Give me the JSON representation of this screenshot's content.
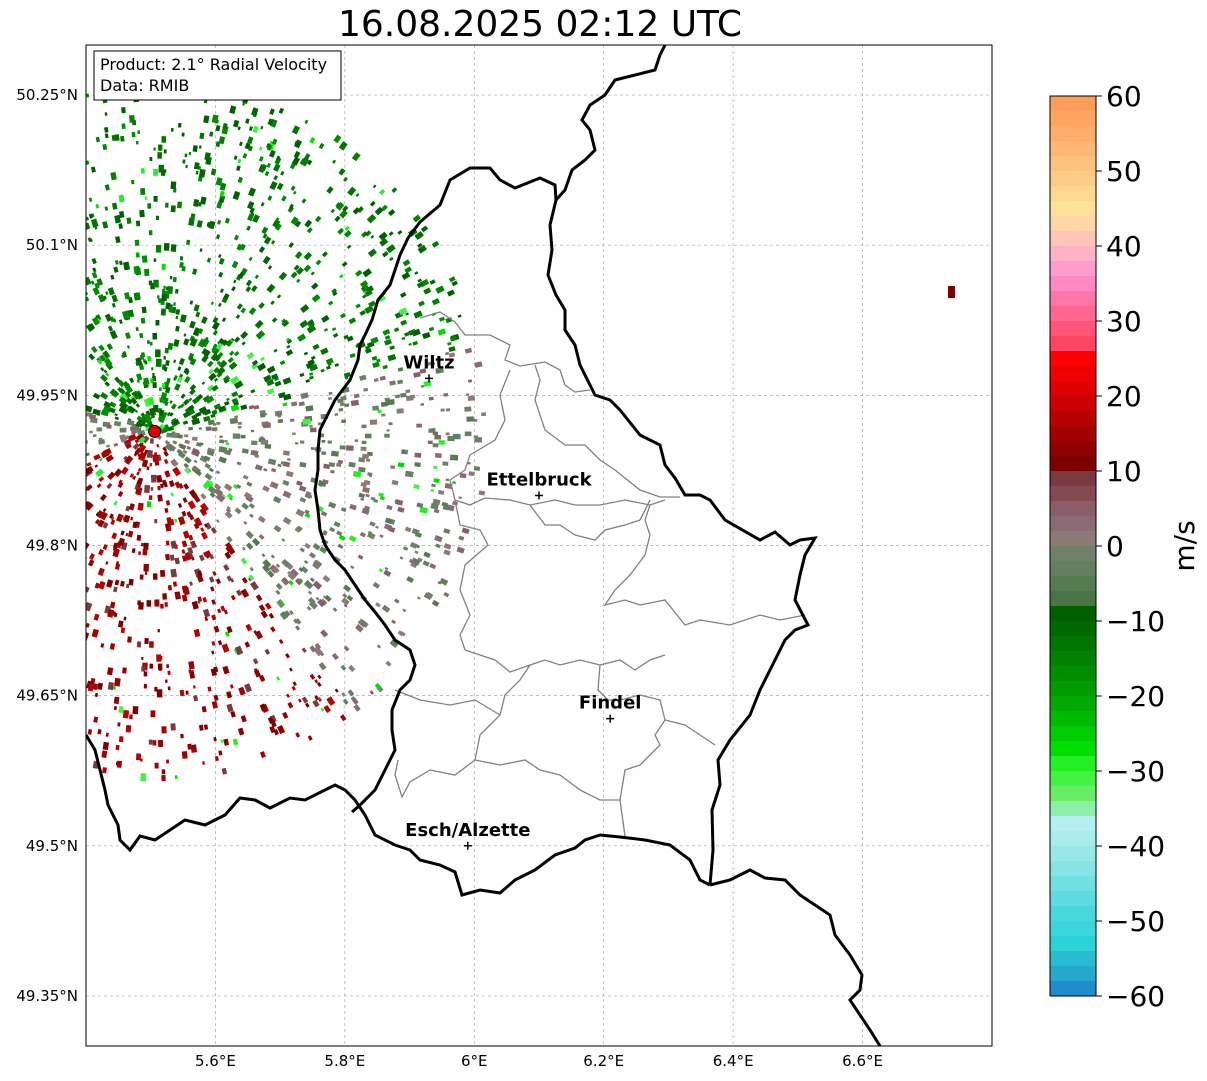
{
  "title": "16.08.2025 02:12 UTC",
  "info_box": {
    "product": "Product: 2.1° Radial Velocity",
    "data_source": "Data: RMIB"
  },
  "map_extent": {
    "lon": [
      5.4,
      6.8
    ],
    "lat": [
      49.3,
      50.3
    ]
  },
  "lat_ticks": [
    {
      "value": 50.25,
      "label": "50.25°N"
    },
    {
      "value": 50.1,
      "label": "50.1°N"
    },
    {
      "value": 49.95,
      "label": "49.95°N"
    },
    {
      "value": 49.8,
      "label": "49.8°N"
    },
    {
      "value": 49.65,
      "label": "49.65°N"
    },
    {
      "value": 49.5,
      "label": "49.5°N"
    },
    {
      "value": 49.35,
      "label": "49.35°N"
    }
  ],
  "lon_ticks": [
    {
      "value": 5.6,
      "label": "5.6°E"
    },
    {
      "value": 5.8,
      "label": "5.8°E"
    },
    {
      "value": 6.0,
      "label": "6°E"
    },
    {
      "value": 6.2,
      "label": "6.2°E"
    },
    {
      "value": 6.4,
      "label": "6.4°E"
    },
    {
      "value": 6.6,
      "label": "6.6°E"
    }
  ],
  "cities": [
    {
      "name": "Wiltz",
      "lon": 5.93,
      "lat": 49.967
    },
    {
      "name": "Ettelbruck",
      "lon": 6.1,
      "lat": 49.85
    },
    {
      "name": "Findel",
      "lon": 6.21,
      "lat": 49.627
    },
    {
      "name": "Esch/Alzette",
      "lon": 5.99,
      "lat": 49.5
    }
  ],
  "radar_site": {
    "lon": 5.506,
    "lat": 49.914,
    "color": "#e00000"
  },
  "colorbar": {
    "label": "m/s",
    "min": -60,
    "max": 60,
    "ticks": [
      {
        "value": 60,
        "label": "60"
      },
      {
        "value": 50,
        "label": "50"
      },
      {
        "value": 40,
        "label": "40"
      },
      {
        "value": 30,
        "label": "30"
      },
      {
        "value": 20,
        "label": "20"
      },
      {
        "value": 10,
        "label": "10"
      },
      {
        "value": 0,
        "label": "0"
      },
      {
        "value": -10,
        "label": "−10"
      },
      {
        "value": -20,
        "label": "−20"
      },
      {
        "value": -30,
        "label": "−30"
      },
      {
        "value": -40,
        "label": "−40"
      },
      {
        "value": -50,
        "label": "−50"
      },
      {
        "value": -60,
        "label": "−60"
      }
    ],
    "bands": [
      {
        "from": 58,
        "to": 60,
        "color": "#ff9d5a"
      },
      {
        "from": 56,
        "to": 58,
        "color": "#ffa560"
      },
      {
        "from": 54,
        "to": 56,
        "color": "#ffae6a"
      },
      {
        "from": 52,
        "to": 54,
        "color": "#ffb874"
      },
      {
        "from": 50,
        "to": 52,
        "color": "#ffc27e"
      },
      {
        "from": 48,
        "to": 50,
        "color": "#ffcc88"
      },
      {
        "from": 46,
        "to": 48,
        "color": "#ffd88f"
      },
      {
        "from": 44,
        "to": 46,
        "color": "#ffe29a"
      },
      {
        "from": 42,
        "to": 44,
        "color": "#ffd6a8"
      },
      {
        "from": 40,
        "to": 42,
        "color": "#ffc4b8"
      },
      {
        "from": 38,
        "to": 40,
        "color": "#ffb2c4"
      },
      {
        "from": 36,
        "to": 38,
        "color": "#ff9ccc"
      },
      {
        "from": 34,
        "to": 36,
        "color": "#ff88c2"
      },
      {
        "from": 32,
        "to": 34,
        "color": "#ff77a8"
      },
      {
        "from": 30,
        "to": 32,
        "color": "#ff6690"
      },
      {
        "from": 28,
        "to": 30,
        "color": "#ff5578"
      },
      {
        "from": 26,
        "to": 28,
        "color": "#ff4464"
      },
      {
        "from": 24,
        "to": 26,
        "color": "#ff0000"
      },
      {
        "from": 22,
        "to": 24,
        "color": "#ef0000"
      },
      {
        "from": 20,
        "to": 22,
        "color": "#de0000"
      },
      {
        "from": 18,
        "to": 20,
        "color": "#cc0000"
      },
      {
        "from": 16,
        "to": 18,
        "color": "#b80000"
      },
      {
        "from": 14,
        "to": 16,
        "color": "#a40000"
      },
      {
        "from": 12,
        "to": 14,
        "color": "#900000"
      },
      {
        "from": 10,
        "to": 12,
        "color": "#7c0000"
      },
      {
        "from": 8,
        "to": 10,
        "color": "#7a3a40"
      },
      {
        "from": 6,
        "to": 8,
        "color": "#844a52"
      },
      {
        "from": 4,
        "to": 6,
        "color": "#8a5e68"
      },
      {
        "from": 2,
        "to": 4,
        "color": "#8a6a74"
      },
      {
        "from": 0,
        "to": 2,
        "color": "#8c7a76"
      },
      {
        "from": -2,
        "to": 0,
        "color": "#6e806a"
      },
      {
        "from": -4,
        "to": -2,
        "color": "#62805e"
      },
      {
        "from": -6,
        "to": -4,
        "color": "#567a52"
      },
      {
        "from": -8,
        "to": -6,
        "color": "#4a7446"
      },
      {
        "from": -10,
        "to": -8,
        "color": "#006000"
      },
      {
        "from": -12,
        "to": -10,
        "color": "#006a00"
      },
      {
        "from": -14,
        "to": -12,
        "color": "#007600"
      },
      {
        "from": -16,
        "to": -14,
        "color": "#008200"
      },
      {
        "from": -18,
        "to": -16,
        "color": "#008e00"
      },
      {
        "from": -20,
        "to": -18,
        "color": "#009c00"
      },
      {
        "from": -22,
        "to": -20,
        "color": "#00aa00"
      },
      {
        "from": -24,
        "to": -22,
        "color": "#00ba00"
      },
      {
        "from": -26,
        "to": -24,
        "color": "#00cc00"
      },
      {
        "from": -28,
        "to": -26,
        "color": "#00e000"
      },
      {
        "from": -30,
        "to": -28,
        "color": "#22f022"
      },
      {
        "from": -32,
        "to": -30,
        "color": "#44f244"
      },
      {
        "from": -34,
        "to": -32,
        "color": "#66ee66"
      },
      {
        "from": -36,
        "to": -34,
        "color": "#8ef0a8"
      },
      {
        "from": -38,
        "to": -36,
        "color": "#b4f0f0"
      },
      {
        "from": -40,
        "to": -38,
        "color": "#a8ecec"
      },
      {
        "from": -42,
        "to": -40,
        "color": "#98e8e8"
      },
      {
        "from": -44,
        "to": -42,
        "color": "#86e4e6"
      },
      {
        "from": -46,
        "to": -44,
        "color": "#70e0e2"
      },
      {
        "from": -48,
        "to": -46,
        "color": "#5cdcde"
      },
      {
        "from": -50,
        "to": -48,
        "color": "#48d8dc"
      },
      {
        "from": -52,
        "to": -50,
        "color": "#3ad6dc"
      },
      {
        "from": -54,
        "to": -52,
        "color": "#2cd2d8"
      },
      {
        "from": -56,
        "to": -54,
        "color": "#28bcd0"
      },
      {
        "from": -58,
        "to": -56,
        "color": "#24a8ce"
      },
      {
        "from": -60,
        "to": -58,
        "color": "#1f8ccc"
      }
    ]
  }
}
